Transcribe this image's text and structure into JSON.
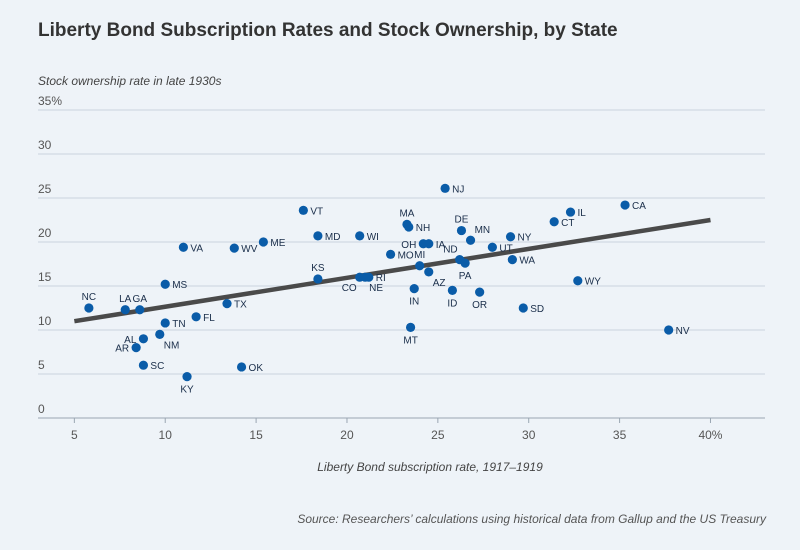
{
  "chart_data": {
    "type": "scatter",
    "title": "Liberty Bond Subscription Rates and Stock Ownership, by State",
    "ylabel": "Stock ownership rate in late 1930s",
    "xlabel": "Liberty Bond subscription rate, 1917–1919",
    "source": "Source: Researchers’ calculations using historical data from Gallup and the US Treasury",
    "xlim": [
      3,
      43
    ],
    "ylim": [
      0,
      35
    ],
    "x_ticks": [
      "5",
      "10",
      "15",
      "20",
      "25",
      "30",
      "35",
      "40%"
    ],
    "y_ticks": [
      "0",
      "5",
      "10",
      "15",
      "20",
      "25",
      "30",
      "35%"
    ],
    "grid": "horizontal",
    "point_color": "#0a5ca8",
    "trend_color": "#4a4a4a",
    "trendline": {
      "x": [
        5,
        40
      ],
      "y": [
        11.0,
        22.5
      ]
    },
    "points": [
      {
        "label": "NC",
        "x": 5.8,
        "y": 12.5,
        "pos": "above"
      },
      {
        "label": "LA",
        "x": 7.8,
        "y": 12.3,
        "pos": "above"
      },
      {
        "label": "GA",
        "x": 8.6,
        "y": 12.3,
        "pos": "above"
      },
      {
        "label": "AL",
        "x": 8.8,
        "y": 9.0,
        "pos": "left"
      },
      {
        "label": "AR",
        "x": 8.4,
        "y": 8.0,
        "pos": "left"
      },
      {
        "label": "SC",
        "x": 8.8,
        "y": 6.0,
        "pos": "right"
      },
      {
        "label": "NM",
        "x": 9.7,
        "y": 9.5,
        "pos": "below-right"
      },
      {
        "label": "TN",
        "x": 10.0,
        "y": 10.8,
        "pos": "right"
      },
      {
        "label": "MS",
        "x": 10.0,
        "y": 15.2,
        "pos": "right"
      },
      {
        "label": "KY",
        "x": 11.2,
        "y": 4.7,
        "pos": "below"
      },
      {
        "label": "VA",
        "x": 11.0,
        "y": 19.4,
        "pos": "right"
      },
      {
        "label": "FL",
        "x": 11.7,
        "y": 11.5,
        "pos": "right"
      },
      {
        "label": "TX",
        "x": 13.4,
        "y": 13.0,
        "pos": "right"
      },
      {
        "label": "WV",
        "x": 13.8,
        "y": 19.3,
        "pos": "right"
      },
      {
        "label": "OK",
        "x": 14.2,
        "y": 5.8,
        "pos": "right"
      },
      {
        "label": "ME",
        "x": 15.4,
        "y": 20.0,
        "pos": "right"
      },
      {
        "label": "VT",
        "x": 17.6,
        "y": 23.6,
        "pos": "right"
      },
      {
        "label": "MD",
        "x": 18.4,
        "y": 20.7,
        "pos": "right"
      },
      {
        "label": "KS",
        "x": 18.4,
        "y": 15.8,
        "pos": "above"
      },
      {
        "label": "WI",
        "x": 20.7,
        "y": 20.7,
        "pos": "right"
      },
      {
        "label": "CO",
        "x": 20.7,
        "y": 16.0,
        "pos": "below-left"
      },
      {
        "label": "NE",
        "x": 21.0,
        "y": 16.0,
        "pos": "below-right"
      },
      {
        "label": "RI",
        "x": 21.2,
        "y": 16.0,
        "pos": "right"
      },
      {
        "label": "MO",
        "x": 22.4,
        "y": 18.6,
        "pos": "right"
      },
      {
        "label": "MA",
        "x": 23.3,
        "y": 22.0,
        "pos": "above"
      },
      {
        "label": "NH",
        "x": 23.4,
        "y": 21.7,
        "pos": "right"
      },
      {
        "label": "OH",
        "x": 24.2,
        "y": 19.8,
        "pos": "left"
      },
      {
        "label": "IA",
        "x": 24.5,
        "y": 19.8,
        "pos": "right"
      },
      {
        "label": "MI",
        "x": 24.0,
        "y": 17.3,
        "pos": "above"
      },
      {
        "label": "AZ",
        "x": 24.5,
        "y": 16.6,
        "pos": "below-right"
      },
      {
        "label": "IN",
        "x": 23.7,
        "y": 14.7,
        "pos": "below"
      },
      {
        "label": "MT",
        "x": 23.5,
        "y": 10.3,
        "pos": "below"
      },
      {
        "label": "NJ",
        "x": 25.4,
        "y": 26.1,
        "pos": "right"
      },
      {
        "label": "DE",
        "x": 26.3,
        "y": 21.3,
        "pos": "above"
      },
      {
        "label": "MN",
        "x": 26.8,
        "y": 20.2,
        "pos": "above-right"
      },
      {
        "label": "ND",
        "x": 26.2,
        "y": 18.0,
        "pos": "above-left"
      },
      {
        "label": "PA",
        "x": 26.5,
        "y": 17.6,
        "pos": "below"
      },
      {
        "label": "ID",
        "x": 25.8,
        "y": 14.5,
        "pos": "below"
      },
      {
        "label": "OR",
        "x": 27.3,
        "y": 14.3,
        "pos": "below"
      },
      {
        "label": "UT",
        "x": 28.0,
        "y": 19.4,
        "pos": "right"
      },
      {
        "label": "NY",
        "x": 29.0,
        "y": 20.6,
        "pos": "right"
      },
      {
        "label": "WA",
        "x": 29.1,
        "y": 18.0,
        "pos": "right"
      },
      {
        "label": "SD",
        "x": 29.7,
        "y": 12.5,
        "pos": "right"
      },
      {
        "label": "CT",
        "x": 31.4,
        "y": 22.3,
        "pos": "right"
      },
      {
        "label": "IL",
        "x": 32.3,
        "y": 23.4,
        "pos": "right"
      },
      {
        "label": "WY",
        "x": 32.7,
        "y": 15.6,
        "pos": "right"
      },
      {
        "label": "CA",
        "x": 35.3,
        "y": 24.2,
        "pos": "right"
      },
      {
        "label": "NV",
        "x": 37.7,
        "y": 10.0,
        "pos": "right"
      }
    ]
  }
}
